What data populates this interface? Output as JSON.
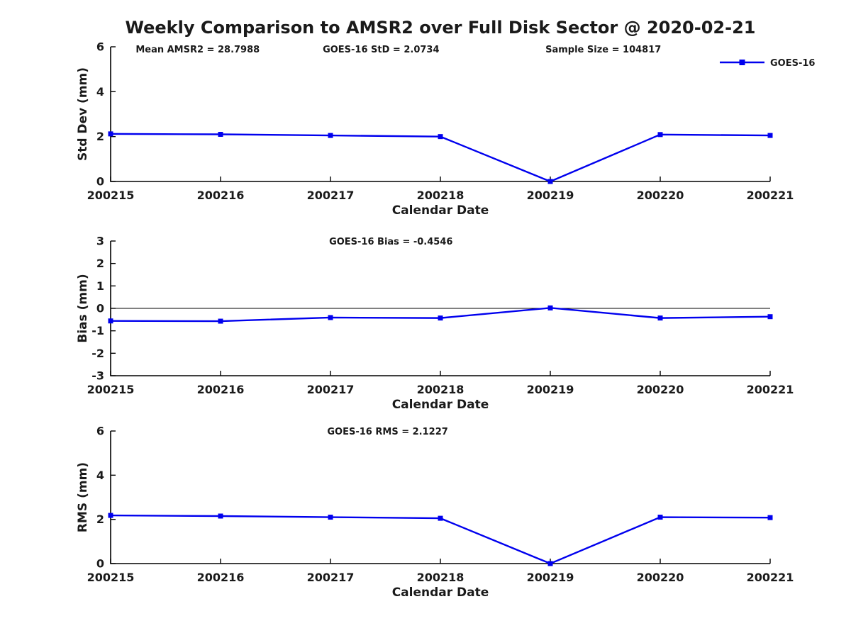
{
  "figure": {
    "title": "Weekly Comparison to AMSR2 over Full Disk Sector @ 2020-02-21",
    "series_color": "#0000EE",
    "axis_color": "#000000",
    "background_color": "#ffffff",
    "legend": {
      "label": "GOES-16",
      "position": "top-right"
    }
  },
  "chart_data": [
    {
      "type": "line",
      "panel": "std-dev",
      "categories": [
        "200215",
        "200216",
        "200217",
        "200218",
        "200219",
        "200220",
        "200221"
      ],
      "series": [
        {
          "name": "GOES-16",
          "values": [
            2.12,
            2.1,
            2.05,
            2.0,
            0.0,
            2.09,
            2.05
          ]
        }
      ],
      "xlabel": "Calendar Date",
      "ylabel": "Std Dev (mm)",
      "ylim": [
        0,
        6
      ],
      "yticks": [
        0,
        2,
        4,
        6
      ],
      "grid": false,
      "zero_line": false,
      "legend": {
        "label": "GOES-16"
      },
      "annotations": [
        {
          "text": "Mean AMSR2 = 28.7988",
          "xfrac": 0.132
        },
        {
          "text": "GOES-16 StD = 2.0734",
          "xfrac": 0.41
        },
        {
          "text": "Sample Size = 104817",
          "xfrac": 0.747
        }
      ]
    },
    {
      "type": "line",
      "panel": "bias",
      "categories": [
        "200215",
        "200216",
        "200217",
        "200218",
        "200219",
        "200220",
        "200221"
      ],
      "series": [
        {
          "name": "GOES-16",
          "values": [
            -0.56,
            -0.57,
            -0.41,
            -0.43,
            0.02,
            -0.43,
            -0.37
          ]
        }
      ],
      "xlabel": "Calendar Date",
      "ylabel": "Bias (mm)",
      "ylim": [
        -3,
        3
      ],
      "yticks": [
        -3,
        -2,
        -1,
        0,
        1,
        2,
        3
      ],
      "grid": false,
      "zero_line": true,
      "annotations": [
        {
          "text": "GOES-16 Bias  = -0.4546",
          "xfrac": 0.425
        }
      ]
    },
    {
      "type": "line",
      "panel": "rms",
      "categories": [
        "200215",
        "200216",
        "200217",
        "200218",
        "200219",
        "200220",
        "200221"
      ],
      "series": [
        {
          "name": "GOES-16",
          "values": [
            2.18,
            2.15,
            2.1,
            2.05,
            0.0,
            2.1,
            2.08
          ]
        }
      ],
      "xlabel": "Calendar Date",
      "ylabel": "RMS (mm)",
      "ylim": [
        0,
        6
      ],
      "yticks": [
        0,
        2,
        4,
        6
      ],
      "grid": false,
      "zero_line": false,
      "annotations": [
        {
          "text": "GOES-16 RMS = 2.1227",
          "xfrac": 0.42
        }
      ]
    }
  ]
}
